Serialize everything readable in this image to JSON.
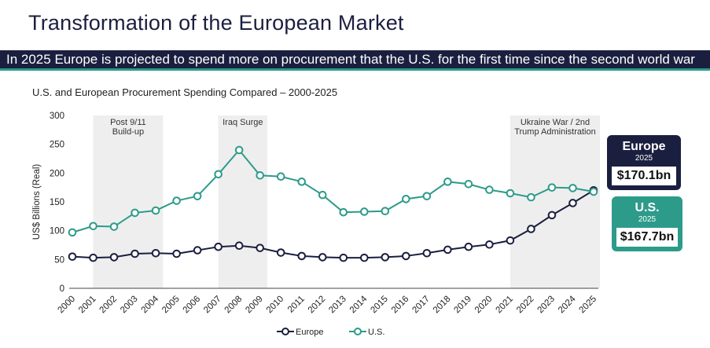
{
  "header": {
    "title": "Transformation of the European Market",
    "banner": "In 2025 Europe is projected to spend more on procurement that the U.S. for the first time since the second world war"
  },
  "colors": {
    "europe": "#1b1f3f",
    "us": "#2d9b8a",
    "band": "#eeeeee"
  },
  "chart_data": {
    "type": "line",
    "title": "U.S. and European Procurement Spending Compared – 2000-2025",
    "ylabel": "US$ Billions (Real)",
    "xlabel": "",
    "ylim": [
      0,
      300
    ],
    "yticks": [
      0,
      50,
      100,
      150,
      200,
      250,
      300
    ],
    "categories": [
      "2000",
      "2001",
      "2002",
      "2003",
      "2004",
      "2005",
      "2006",
      "2007",
      "2008",
      "2009",
      "2010",
      "2011",
      "2012",
      "2013",
      "2014",
      "2015",
      "2016",
      "2017",
      "2018",
      "2019",
      "2020",
      "2021",
      "2022",
      "2023",
      "2024",
      "2025"
    ],
    "series": [
      {
        "name": "Europe",
        "values": [
          55,
          53,
          54,
          60,
          61,
          60,
          66,
          72,
          74,
          70,
          62,
          56,
          54,
          53,
          53,
          54,
          56,
          61,
          67,
          72,
          76,
          83,
          103,
          127,
          148,
          170.1
        ]
      },
      {
        "name": "U.S.",
        "values": [
          97,
          108,
          107,
          131,
          135,
          152,
          160,
          198,
          240,
          196,
          194,
          185,
          162,
          132,
          133,
          134,
          155,
          160,
          185,
          181,
          171,
          165,
          158,
          175,
          174,
          167.7
        ]
      }
    ],
    "bands": [
      {
        "from": "2001",
        "to": "2004",
        "label_lines": [
          "Post 9/11",
          "Build-up"
        ]
      },
      {
        "from": "2007",
        "to": "2009",
        "label_lines": [
          "Iraq Surge"
        ]
      },
      {
        "from": "2021",
        "to": "2025",
        "label_lines": [
          "Ukraine War / 2nd",
          "Trump Administration"
        ]
      }
    ],
    "legend": [
      "Europe",
      "U.S."
    ],
    "legend_position": "bottom-center",
    "callouts": [
      {
        "series": "Europe",
        "label": "Europe",
        "year": "2025",
        "value": "$170.1bn"
      },
      {
        "series": "U.S.",
        "label": "U.S.",
        "year": "2025",
        "value": "$167.7bn"
      }
    ]
  }
}
